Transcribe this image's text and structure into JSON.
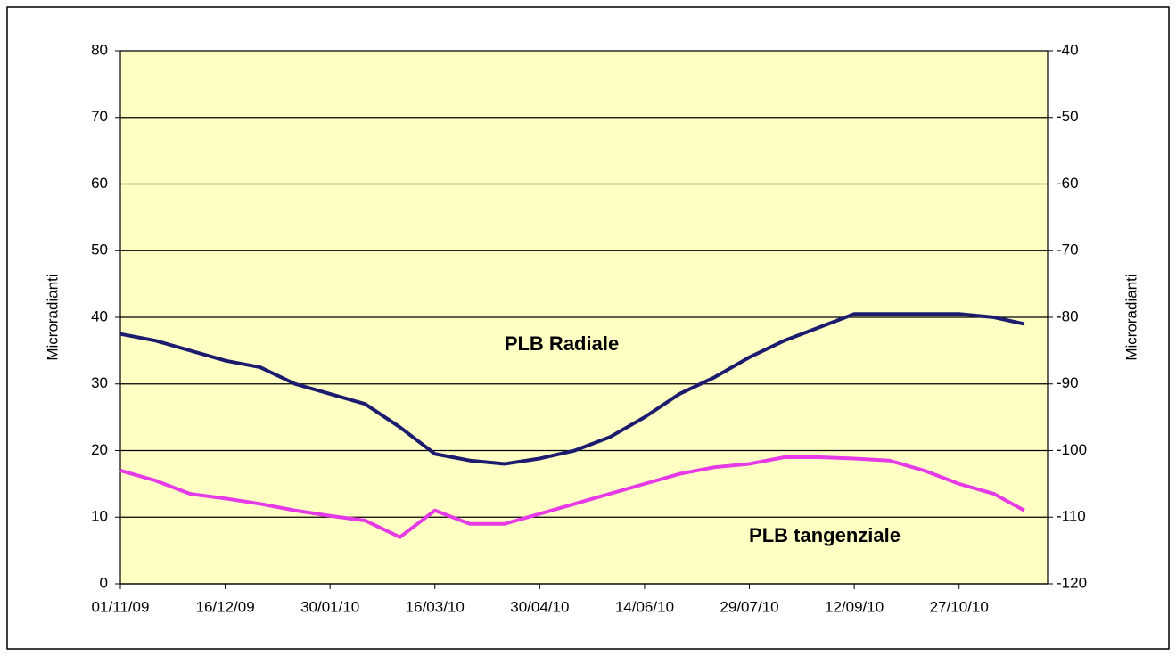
{
  "chart_data": {
    "type": "line",
    "y_label": "Microradianti",
    "y2_label": "Microradianti",
    "x": [
      "01/11/09",
      "16/11/09",
      "01/12/09",
      "16/12/09",
      "31/12/09",
      "15/01/10",
      "30/01/10",
      "14/02/10",
      "01/03/10",
      "16/03/10",
      "31/03/10",
      "15/04/10",
      "30/04/10",
      "15/05/10",
      "30/05/10",
      "14/06/10",
      "29/06/10",
      "14/07/10",
      "29/07/10",
      "13/08/10",
      "28/08/10",
      "12/09/10",
      "27/09/10",
      "12/10/10",
      "27/10/10",
      "11/11/10",
      "24/11/10"
    ],
    "series": [
      {
        "name": "PLB Radiale",
        "color": "#1c1c6e",
        "axis": "y",
        "values": [
          37.5,
          36.5,
          35,
          33.5,
          32.5,
          30,
          28.5,
          27,
          23.5,
          19.5,
          18.5,
          18,
          18.8,
          20,
          22,
          25,
          28.5,
          31,
          34,
          36.5,
          38.5,
          40.5,
          40.5,
          40.5,
          40.5,
          40,
          39
        ]
      },
      {
        "name": "PLB tangenziale",
        "color": "#e53ae5",
        "axis": "y2",
        "values": [
          -103,
          -104.5,
          -106.5,
          -107.2,
          -108,
          -109,
          -109.8,
          -110.5,
          -113,
          -109,
          -111,
          -111,
          -109.5,
          -108,
          -106.5,
          -105,
          -103.5,
          -102.5,
          -102,
          -101,
          -101,
          -101.2,
          -101.5,
          -103,
          -105,
          -106.5,
          -109
        ]
      }
    ],
    "xlim": [
      "01/11/09",
      "04/12/10"
    ],
    "xticks": [
      "01/11/09",
      "16/12/09",
      "30/01/10",
      "16/03/10",
      "30/04/10",
      "14/06/10",
      "29/07/10",
      "12/09/10",
      "27/10/10"
    ],
    "ylim": [
      0,
      80
    ],
    "yticks": [
      0,
      10,
      20,
      30,
      40,
      50,
      60,
      70,
      80
    ],
    "y2lim": [
      -120,
      -40
    ],
    "y2ticks": [
      -120,
      -110,
      -100,
      -90,
      -80,
      -70,
      -60,
      -50,
      -40
    ],
    "grid": true,
    "plot_background": "#ffffc4"
  }
}
